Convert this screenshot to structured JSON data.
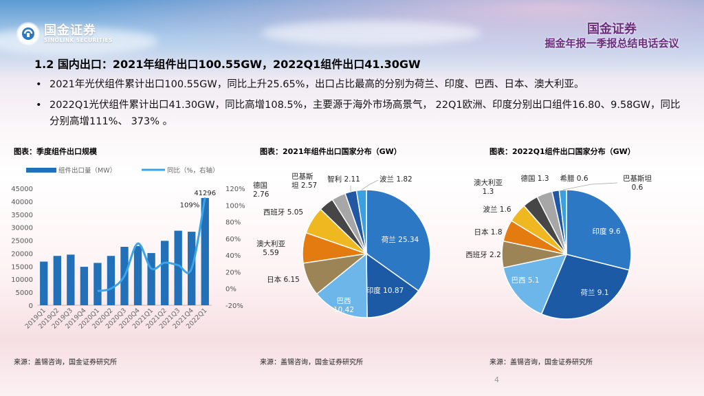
{
  "header": {
    "logo_cn": "国金证券",
    "logo_en": "SINOLINK SECURITIES",
    "brand_title": "国金证券",
    "brand_subtitle": "掘金年报一季报总结电话会议"
  },
  "title": "1.2 国内出口：2021年组件出口100.55GW，2022Q1组件出口41.30GW",
  "bullets": [
    "2021年光伏组件累计出口100.55GW，同比上升25.65%，出口占比最高的分别为荷兰、印度、巴西、日本、澳大利亚。",
    "2022Q1光伏组件累计出口41.30GW，同比高增108.5%，主要源于海外市场高景气， 22Q1欧洲、印度分别出口组件16.80、9.58GW，同比分别高增111%、 373% 。"
  ],
  "page_number": "4",
  "charts": [
    {
      "title": "图表：季度组件出口规模",
      "source": "来源：盖锡咨询，国金证券研究所"
    },
    {
      "title": "图表：2021年组件出口国家分布（GW）",
      "source": "来源：盖锡咨询，国金证券研究所"
    },
    {
      "title": "图表：2022Q1组件出口国家分布（GW）",
      "source": "来源：盖锡咨询，国金证券研究所"
    }
  ],
  "chart_data": [
    {
      "type": "bar",
      "title": "图表：季度组件出口规模",
      "categories": [
        "2019Q1",
        "2019Q2",
        "2019Q3",
        "2019Q4",
        "2020Q1",
        "2020Q2",
        "2020Q3",
        "2020Q4",
        "2021Q1",
        "2021Q2",
        "2021Q3",
        "2021Q4",
        "2022Q1"
      ],
      "series": [
        {
          "name": "组件出口量（MW）",
          "axis": "left",
          "kind": "bar",
          "color": "#2270b8",
          "values": [
            16800,
            19000,
            19500,
            14800,
            16300,
            19000,
            22500,
            22800,
            20100,
            24800,
            28700,
            28300,
            41296
          ]
        },
        {
          "name": "同比（%，右轴）",
          "axis": "right",
          "kind": "line",
          "color": "#3aa6e8",
          "values": [
            null,
            null,
            null,
            null,
            -3,
            0,
            15,
            54,
            24,
            31,
            28,
            24,
            109
          ]
        }
      ],
      "data_labels": [
        {
          "index": 12,
          "series": 0,
          "text": "41296"
        },
        {
          "index": 12,
          "series": 1,
          "text": "109%"
        }
      ],
      "ylim": [
        0,
        45000
      ],
      "yticks": [
        "0",
        "5000",
        "10000",
        "15000",
        "20000",
        "25000",
        "30000",
        "35000",
        "40000",
        "45000"
      ],
      "y2lim": [
        -20,
        120
      ],
      "y2ticks": [
        "-20%",
        "0%",
        "20%",
        "40%",
        "60%",
        "80%",
        "100%",
        "120%"
      ],
      "legend_position": "top"
    },
    {
      "type": "pie",
      "title": "图表：2021年组件出口国家分布（GW）",
      "slices": [
        {
          "label": "荷兰",
          "value": 25.34,
          "display": "荷兰 25.34",
          "color": "#2d78c4"
        },
        {
          "label": "印度",
          "value": 10.87,
          "display": "印度 10.87",
          "color": "#1c5aa6"
        },
        {
          "label": "巴西",
          "value": 10.42,
          "display": "巴西\n10.42",
          "color": "#6cb6ea"
        },
        {
          "label": "日本",
          "value": 6.15,
          "display": "日本 6.15",
          "color": "#9c8457"
        },
        {
          "label": "澳大利亚",
          "value": 5.59,
          "display": "澳大利亚\n5.59",
          "color": "#e37b10"
        },
        {
          "label": "西班牙",
          "value": 5.05,
          "display": "西班牙 5.05",
          "color": "#f0b820"
        },
        {
          "label": "德国",
          "value": 2.76,
          "display": "德国\n2.76",
          "color": "#464646"
        },
        {
          "label": "巴基斯坦",
          "value": 2.57,
          "display": "巴基斯\n坦 2.57",
          "color": "#a7a7a7"
        },
        {
          "label": "智利",
          "value": 2.11,
          "display": "智利 2.11",
          "color": "#2257a4"
        },
        {
          "label": "波兰",
          "value": 1.82,
          "display": "波兰 1.82",
          "color": "#3ba0e0"
        }
      ]
    },
    {
      "type": "pie",
      "title": "图表：2022Q1组件出口国家分布（GW）",
      "slices": [
        {
          "label": "印度",
          "value": 9.6,
          "display": "印度 9.6",
          "color": "#2d78c4"
        },
        {
          "label": "荷兰",
          "value": 9.1,
          "display": "荷兰 9.1",
          "color": "#1c5aa6"
        },
        {
          "label": "巴西",
          "value": 5.1,
          "display": "巴西 5.1",
          "color": "#6cb6ea"
        },
        {
          "label": "西班牙",
          "value": 2.2,
          "display": "西班牙 2.2",
          "color": "#9c8457"
        },
        {
          "label": "日本",
          "value": 1.8,
          "display": "日本 1.8",
          "color": "#e37b10"
        },
        {
          "label": "波兰",
          "value": 1.6,
          "display": "波兰 1.6",
          "color": "#f0b820"
        },
        {
          "label": "澳大利亚",
          "value": 1.3,
          "display": "澳大利亚\n1.3",
          "color": "#464646"
        },
        {
          "label": "德国",
          "value": 1.3,
          "display": "德国 1.3",
          "color": "#a7a7a7"
        },
        {
          "label": "希腊",
          "value": 0.6,
          "display": "希腊 0.6",
          "color": "#2257a4"
        },
        {
          "label": "巴基斯坦",
          "value": 0.6,
          "display": "巴基斯坦\n0.6",
          "color": "#3ba0e0"
        }
      ]
    }
  ],
  "colors": {
    "brand_purple": "#6b2e7e",
    "bar_blue": "#2270b8",
    "line_blue": "#3aa6e8"
  }
}
